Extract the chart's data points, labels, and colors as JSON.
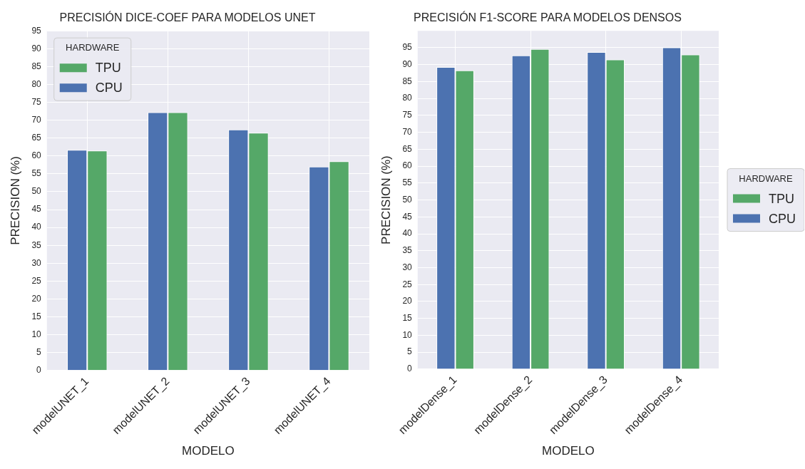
{
  "chart_data": [
    {
      "type": "bar",
      "title": "PRECISIÓN DICE-COEF PARA MODELOS UNET",
      "xlabel": "MODELO",
      "ylabel": "PRECISION (%)",
      "legend_title": "HARDWARE",
      "legend": "top left",
      "grid": true,
      "categories": [
        "modelUNET_1",
        "modelUNET_2",
        "modelUNET_3",
        "modelUNET_4"
      ],
      "series": [
        {
          "name": "CPU",
          "color": "#4c72b0",
          "values": [
            61.7,
            72.2,
            67.4,
            57.0
          ]
        },
        {
          "name": "TPU",
          "color": "#55a868",
          "values": [
            61.5,
            72.2,
            66.5,
            58.5
          ]
        }
      ],
      "ylim": [
        0,
        95
      ],
      "yticks": [
        0,
        5,
        10,
        15,
        20,
        25,
        30,
        35,
        40,
        45,
        50,
        55,
        60,
        65,
        70,
        75,
        80,
        85,
        90,
        95
      ]
    },
    {
      "type": "bar",
      "title": "PRECISIÓN F1-SCORE PARA MODELOS DENSOS",
      "xlabel": "MODELO",
      "ylabel": "PRECISION (%)",
      "legend_title": "HARDWARE",
      "legend": "right",
      "grid": true,
      "categories": [
        "modelDense_1",
        "modelDense_2",
        "modelDense_3",
        "modelDense_4"
      ],
      "series": [
        {
          "name": "CPU",
          "color": "#4c72b0",
          "values": [
            89.3,
            92.7,
            93.7,
            95.1
          ]
        },
        {
          "name": "TPU",
          "color": "#55a868",
          "values": [
            88.3,
            94.6,
            91.5,
            93.0
          ]
        }
      ],
      "ylim": [
        0,
        100
      ],
      "yticks": [
        0,
        5,
        10,
        15,
        20,
        25,
        30,
        35,
        40,
        45,
        50,
        55,
        60,
        65,
        70,
        75,
        80,
        85,
        90,
        95
      ]
    }
  ]
}
